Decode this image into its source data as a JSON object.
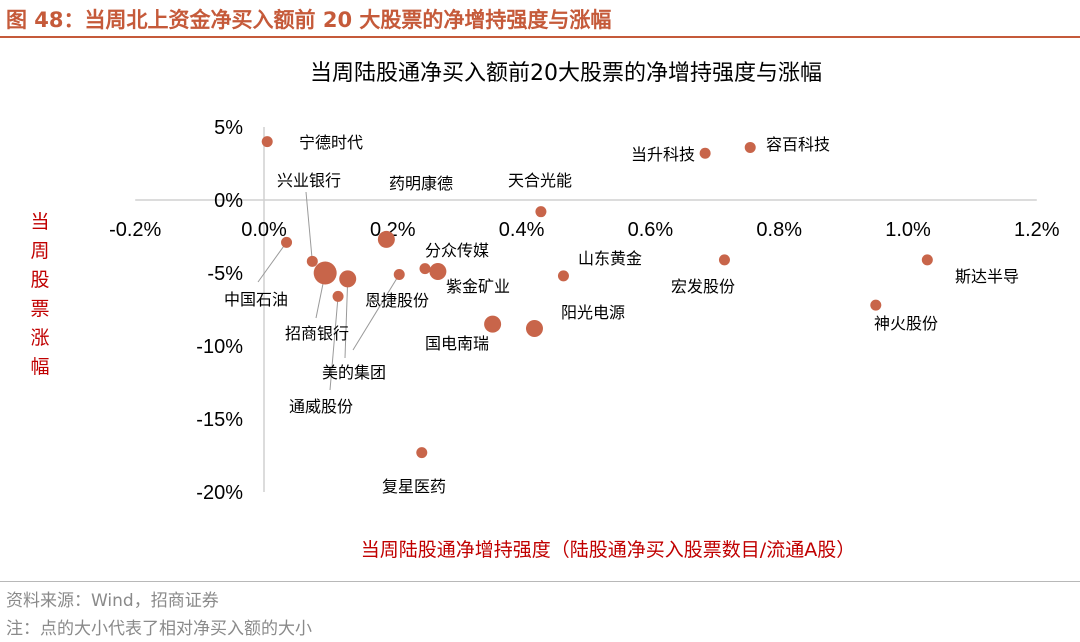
{
  "figure": {
    "title": "图 48：当周北上资金净买入额前 20 大股票的净增持强度与涨幅",
    "source": "资料来源：Wind，招商证券",
    "note": "注：点的大小代表了相对净买入额的大小"
  },
  "colors": {
    "accent": "#c55a3a",
    "point": "#c8654a",
    "axis_label": "#c00000",
    "axis_line": "#d0d0d0"
  },
  "chart_data": {
    "type": "scatter",
    "title": "当周陆股通净买入额前20大股票的净增持强度与涨幅",
    "xlabel": "当周陆股通净增持强度（陆股通净买入股票数目/流通A股）",
    "ylabel": "当周股票涨幅",
    "xlim": [
      -0.2,
      1.2
    ],
    "ylim": [
      -20,
      5
    ],
    "x_unit": "%",
    "y_unit": "%",
    "xticks": [
      "-0.2%",
      "0.0%",
      "0.2%",
      "0.4%",
      "0.6%",
      "0.8%",
      "1.0%",
      "1.2%"
    ],
    "yticks": [
      "5%",
      "0%",
      "-5%",
      "-10%",
      "-15%",
      "-20%"
    ],
    "grid": false,
    "legend": "none",
    "points": [
      {
        "name": "宁德时代",
        "x": 0.005,
        "y": 4.0,
        "size": "small"
      },
      {
        "name": "容百科技",
        "x": 0.755,
        "y": 3.6,
        "size": "small"
      },
      {
        "name": "当升科技",
        "x": 0.685,
        "y": 3.2,
        "size": "small"
      },
      {
        "name": "天合光能",
        "x": 0.43,
        "y": -0.8,
        "size": "small"
      },
      {
        "name": "兴业银行",
        "x": 0.075,
        "y": -4.2,
        "size": "small"
      },
      {
        "name": "药明康德",
        "x": 0.19,
        "y": -2.7,
        "size": "medium"
      },
      {
        "name": "中国石油",
        "x": 0.035,
        "y": -2.9,
        "size": "small"
      },
      {
        "name": "招商银行",
        "x": 0.095,
        "y": -5.0,
        "size": "large"
      },
      {
        "name": "美的集团",
        "x": 0.13,
        "y": -5.4,
        "size": "medium"
      },
      {
        "name": "通威股份",
        "x": 0.115,
        "y": -6.6,
        "size": "small"
      },
      {
        "name": "恩捷股份",
        "x": 0.21,
        "y": -5.1,
        "size": "small"
      },
      {
        "name": "分众传媒",
        "x": 0.25,
        "y": -4.7,
        "size": "small"
      },
      {
        "name": "紫金矿业",
        "x": 0.27,
        "y": -4.9,
        "size": "medium"
      },
      {
        "name": "山东黄金",
        "x": 0.465,
        "y": -5.2,
        "size": "small"
      },
      {
        "name": "宏发股份",
        "x": 0.715,
        "y": -4.1,
        "size": "small"
      },
      {
        "name": "斯达半导",
        "x": 1.03,
        "y": -4.1,
        "size": "small"
      },
      {
        "name": "神火股份",
        "x": 0.95,
        "y": -7.2,
        "size": "small"
      },
      {
        "name": "国电南瑞",
        "x": 0.355,
        "y": -8.5,
        "size": "medium"
      },
      {
        "name": "阳光电源",
        "x": 0.42,
        "y": -8.8,
        "size": "medium"
      },
      {
        "name": "复星医药",
        "x": 0.245,
        "y": -17.3,
        "size": "small"
      }
    ]
  }
}
